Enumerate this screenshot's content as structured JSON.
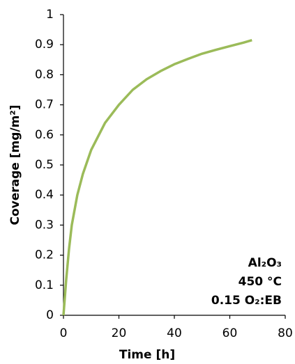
{
  "chart_data": {
    "type": "line",
    "x_label": "Time [h]",
    "y_label": "Coverage [mg/m²]",
    "annotations": [
      "Al₂O₃",
      "450 °C",
      "0.15 O₂:EB"
    ],
    "x": [
      0,
      1,
      2,
      3,
      5,
      7,
      10,
      15,
      20,
      25,
      30,
      35,
      40,
      45,
      50,
      55,
      60,
      65,
      68
    ],
    "series": [
      {
        "color": "#9bbb59",
        "values": [
          0,
          0.12,
          0.22,
          0.3,
          0.4,
          0.47,
          0.55,
          0.64,
          0.7,
          0.75,
          0.785,
          0.812,
          0.835,
          0.853,
          0.87,
          0.883,
          0.895,
          0.907,
          0.915
        ]
      }
    ],
    "xlim": [
      0,
      80
    ],
    "xticks": [
      0,
      20,
      40,
      60,
      80
    ],
    "ylim": [
      0,
      1
    ],
    "yticks": [
      0,
      0.1,
      0.2,
      0.3,
      0.4,
      0.5,
      0.6,
      0.7,
      0.8,
      0.9,
      1
    ],
    "grid": false
  }
}
